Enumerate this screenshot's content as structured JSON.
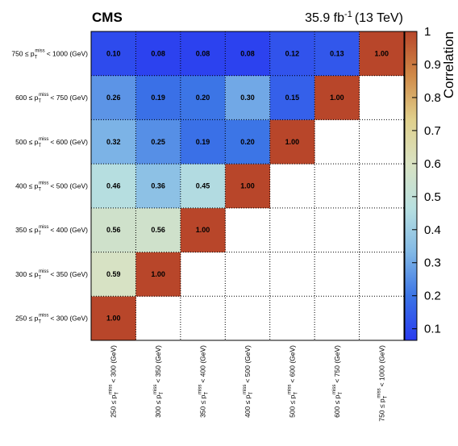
{
  "header": {
    "experiment": "CMS",
    "luminosity_value": "35.9 fb",
    "luminosity_exponent": "-1",
    "energy": "(13 TeV)"
  },
  "chart_data": {
    "type": "heatmap",
    "categories": [
      {
        "low": "250",
        "high": "300"
      },
      {
        "low": "300",
        "high": "350"
      },
      {
        "low": "350",
        "high": "400"
      },
      {
        "low": "400",
        "high": "500"
      },
      {
        "low": "500",
        "high": "600"
      },
      {
        "low": "600",
        "high": "750"
      },
      {
        "low": "750",
        "high": "1000"
      }
    ],
    "label_prefix": "≤ p",
    "label_sub": "T",
    "label_sup": "miss",
    "label_mid": "<",
    "label_unit": "(GeV)",
    "matrix": [
      [
        1.0,
        null,
        null,
        null,
        null,
        null,
        null
      ],
      [
        0.59,
        1.0,
        null,
        null,
        null,
        null,
        null
      ],
      [
        0.56,
        0.56,
        1.0,
        null,
        null,
        null,
        null
      ],
      [
        0.46,
        0.36,
        0.45,
        1.0,
        null,
        null,
        null
      ],
      [
        0.32,
        0.25,
        0.19,
        0.2,
        1.0,
        null,
        null
      ],
      [
        0.26,
        0.19,
        0.2,
        0.3,
        0.15,
        1.0,
        null
      ],
      [
        0.1,
        0.08,
        0.08,
        0.08,
        0.12,
        0.13,
        1.0
      ]
    ],
    "cell_labels": [
      [
        "1.00",
        "",
        "",
        "",
        "",
        "",
        ""
      ],
      [
        "0.59",
        "1.00",
        "",
        "",
        "",
        "",
        ""
      ],
      [
        "0.56",
        "0.56",
        "1.00",
        "",
        "",
        "",
        ""
      ],
      [
        "0.46",
        "0.36",
        "0.45",
        "1.00",
        "",
        "",
        ""
      ],
      [
        "0.32",
        "0.25",
        "0.19",
        "0.20",
        "1.00",
        "",
        ""
      ],
      [
        "0.26",
        "0.19",
        "0.20",
        "0.30",
        "0.15",
        "1.00",
        ""
      ],
      [
        "0.10",
        "0.08",
        "0.08",
        "0.08",
        "0.12",
        "0.13",
        "1.00"
      ]
    ],
    "zlim": [
      0.065,
      1.0
    ],
    "zticks": [
      "0.1",
      "0.2",
      "0.3",
      "0.4",
      "0.5",
      "0.6",
      "0.7",
      "0.8",
      "0.9",
      "1"
    ],
    "zlabel": "Correlation",
    "colorscale": [
      "#2a3cf0",
      "#3b74e6",
      "#82b9e6",
      "#b8e0e0",
      "#d9e2c2",
      "#e0d08c",
      "#d08a48",
      "#b8462a"
    ],
    "grid": true
  }
}
